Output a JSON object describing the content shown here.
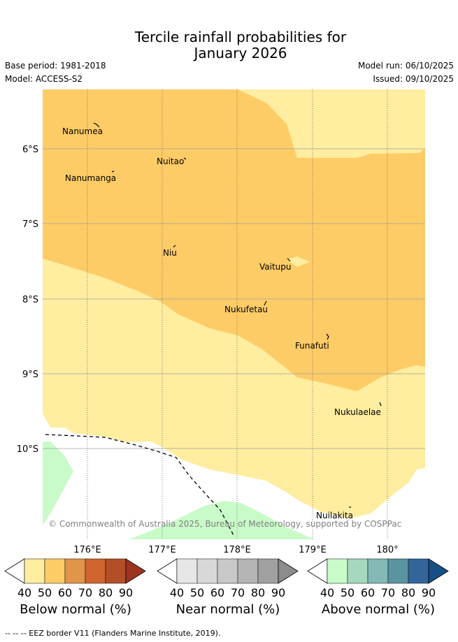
{
  "title_line1": "Tercile rainfall probabilities for",
  "title_line2": "January 2026",
  "base_period": "Base period: 1981-2018",
  "model": "Model: ACCESS-S2",
  "model_run": "Model run: 06/10/2025",
  "issued": "Issued: 09/10/2025",
  "lat_labels": [
    "6°S",
    "7°S",
    "8°S",
    "9°S",
    "10°S"
  ],
  "lon_labels": [
    "176°E",
    "177°E",
    "178°E",
    "179°E",
    "180°"
  ],
  "islands": {
    "nanumea": "Nanumea",
    "nuitao": "Nuitao",
    "nanumanga": "Nanumanga",
    "niu": "Niu",
    "vaitupu": "Vaitupu",
    "nukufetau": "Nukufetau",
    "funafuti": "Funafuti",
    "nukulaelae": "Nukulaelae",
    "nuilakita": "Nuilakita"
  },
  "copyright": "© Commonwealth of Australia 2025, Bureau of Meteorology, supported by COSPPac",
  "legends": [
    {
      "title": "Below normal (%)",
      "ticks": [
        "40",
        "50",
        "60",
        "70",
        "80",
        "90"
      ],
      "colors": [
        "#ffeda0",
        "#fecc66",
        "#e0954a",
        "#d06530",
        "#b34f28",
        "#9c3520"
      ]
    },
    {
      "title": "Near normal (%)",
      "ticks": [
        "40",
        "50",
        "60",
        "70",
        "80",
        "90"
      ],
      "colors": [
        "#e6e6e6",
        "#d8d8d8",
        "#c8c8c8",
        "#b4b4b4",
        "#a0a0a0",
        "#8c8c8c"
      ]
    },
    {
      "title": "Above normal (%)",
      "ticks": [
        "40",
        "50",
        "60",
        "70",
        "80",
        "90"
      ],
      "colors": [
        "#c8fbc8",
        "#a6d8c0",
        "#84b9b5",
        "#5a94a0",
        "#33649a",
        "#154f85"
      ]
    }
  ],
  "footer": "--  --  -- EEZ border V11 (Flanders Marine Institute, 2019)."
}
